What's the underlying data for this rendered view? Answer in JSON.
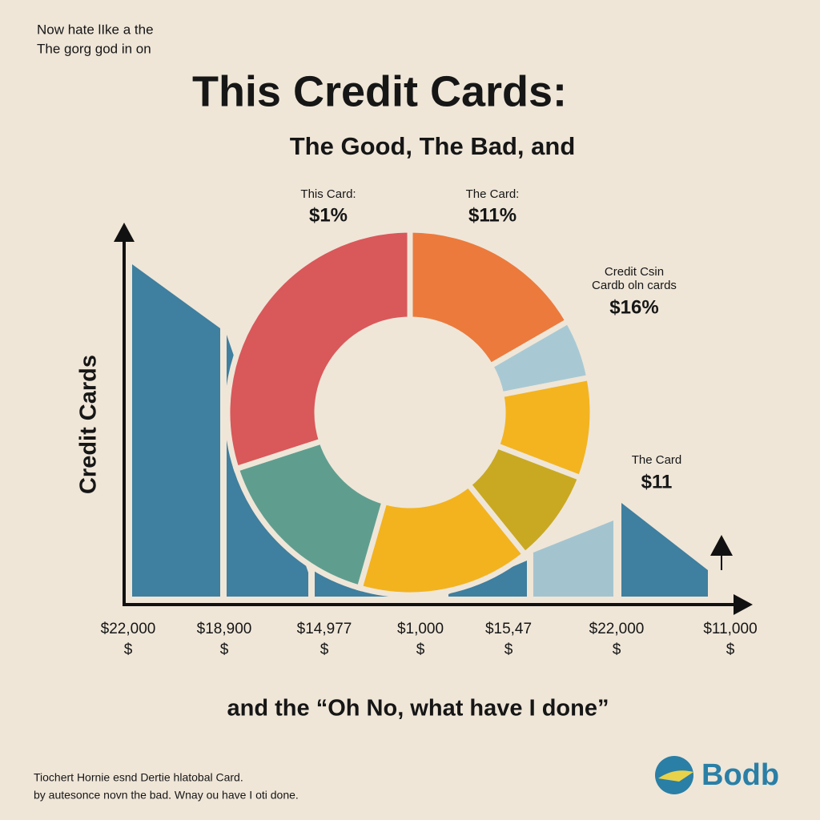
{
  "header": {
    "lines": [
      "Now hate lIke a the",
      "The gorg god in on"
    ],
    "title": "This Credit Cards:",
    "subtitle": "The Good, The Bad, and"
  },
  "y_axis_label": "Credit Cards",
  "callouts": [
    {
      "label": [
        "This Card:"
      ],
      "value": "$1%"
    },
    {
      "label": [
        "The Card:"
      ],
      "value": "$11%"
    },
    {
      "label": [
        "Credit Csin",
        "Cardb oln cards"
      ],
      "value": "$16%"
    },
    {
      "label": [
        "The Card"
      ],
      "value": "$11"
    }
  ],
  "x_labels": [
    {
      "amount": "$22,000",
      "unit": "$"
    },
    {
      "amount": "$18,900",
      "unit": "$"
    },
    {
      "amount": "$14,977",
      "unit": "$"
    },
    {
      "amount": "$1,000",
      "unit": "$"
    },
    {
      "amount": "$15,47",
      "unit": "$"
    },
    {
      "amount": "$22,000",
      "unit": "$"
    },
    {
      "amount": "$11,000",
      "unit": "$"
    }
  ],
  "tagline": "and the “Oh No, what have I done”",
  "footer": {
    "lines": [
      "Tiochert Hornie esnd Dertie hlatobal Card.",
      "by autesonce novn the bad. Wnay ou have I oti done."
    ]
  },
  "logo": "Bodb"
}
